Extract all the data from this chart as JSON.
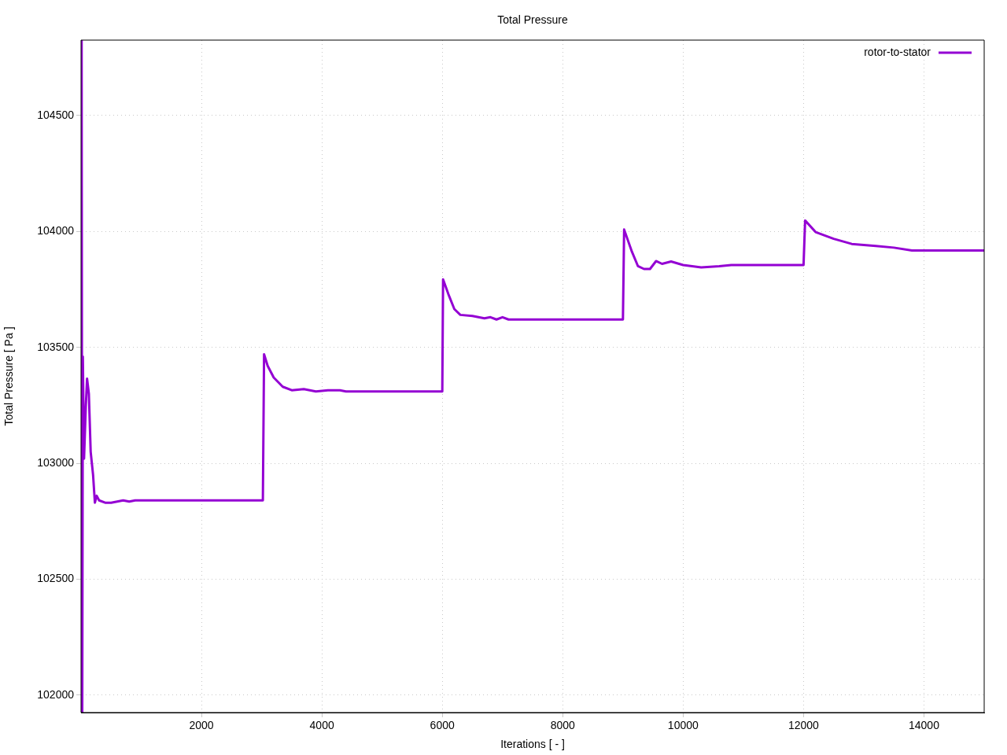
{
  "chart_data": {
    "type": "line",
    "title": "Total Pressure",
    "xlabel": "Iterations [ - ]",
    "ylabel": "Total Pressure [ Pa ]",
    "xlim": [
      0,
      15000
    ],
    "ylim": [
      101925,
      104825
    ],
    "xticks": [
      2000,
      4000,
      6000,
      8000,
      10000,
      12000,
      14000
    ],
    "yticks": [
      102000,
      102500,
      103000,
      103500,
      104000,
      104500
    ],
    "grid": true,
    "legend": "top right",
    "marker": "none",
    "line_style": "solid",
    "series": [
      {
        "name": "rotor-to-stator",
        "color": "#9400d3",
        "x": [
          0,
          10,
          20,
          30,
          50,
          80,
          100,
          130,
          160,
          200,
          230,
          260,
          300,
          400,
          500,
          600,
          700,
          800,
          900,
          1000,
          1100,
          3000,
          3020,
          3040,
          3100,
          3200,
          3350,
          3500,
          3700,
          3900,
          4100,
          4300,
          4400,
          6000,
          6013,
          6100,
          6200,
          6300,
          6500,
          6700,
          6800,
          6900,
          7000,
          7100,
          9000,
          9020,
          9150,
          9250,
          9350,
          9450,
          9550,
          9650,
          9800,
          10000,
          10300,
          10600,
          10800,
          12000,
          12026,
          12200,
          12500,
          12800,
          13200,
          13500,
          13800,
          15000
        ],
        "values": [
          102840,
          104825,
          101925,
          103460,
          103020,
          103250,
          103365,
          103300,
          103050,
          102950,
          102830,
          102860,
          102840,
          102830,
          102830,
          102835,
          102840,
          102835,
          102840,
          102840,
          102840,
          102840,
          102840,
          103470,
          103420,
          103370,
          103330,
          103315,
          103320,
          103310,
          103315,
          103315,
          103310,
          103310,
          103793,
          103730,
          103665,
          103640,
          103635,
          103625,
          103630,
          103620,
          103630,
          103620,
          103620,
          104008,
          103912,
          103850,
          103838,
          103838,
          103872,
          103860,
          103870,
          103855,
          103845,
          103850,
          103855,
          103855,
          104047,
          103997,
          103968,
          103946,
          103937,
          103930,
          103918,
          103918
        ]
      }
    ]
  }
}
